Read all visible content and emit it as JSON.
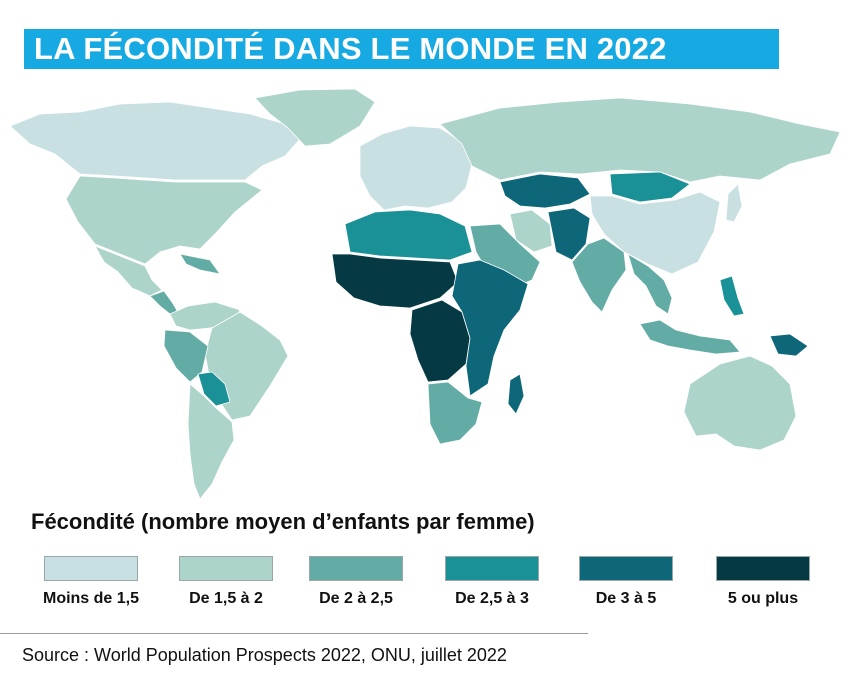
{
  "title": "LA FÉCONDITÉ DANS LE MONDE EN 2022",
  "legend": {
    "title": "Fécondité (nombre moyen d’enfants par femme)",
    "items": [
      {
        "label": "Moins de 1,5",
        "color": "#c9e0e3"
      },
      {
        "label": "De 1,5 à 2",
        "color": "#acd4cb"
      },
      {
        "label": "De 2 à 2,5",
        "color": "#63aca5"
      },
      {
        "label": "De 2,5 à 3",
        "color": "#1a9097"
      },
      {
        "label": "De 3 à 5",
        "color": "#0e6679"
      },
      {
        "label": "5 ou plus",
        "color": "#053a45"
      }
    ]
  },
  "regions": [
    {
      "name": "canada",
      "class": 0
    },
    {
      "name": "greenland",
      "class": 1
    },
    {
      "name": "usa",
      "class": 1
    },
    {
      "name": "mexico",
      "class": 1
    },
    {
      "name": "central-america",
      "class": 2
    },
    {
      "name": "colombia-venezuela",
      "class": 1
    },
    {
      "name": "brazil",
      "class": 1
    },
    {
      "name": "peru",
      "class": 2
    },
    {
      "name": "bolivia",
      "class": 3
    },
    {
      "name": "argentina-chile",
      "class": 1
    },
    {
      "name": "europe",
      "class": 0
    },
    {
      "name": "russia",
      "class": 1
    },
    {
      "name": "china",
      "class": 0
    },
    {
      "name": "mongolia",
      "class": 3
    },
    {
      "name": "central-asia",
      "class": 4
    },
    {
      "name": "iran",
      "class": 1
    },
    {
      "name": "afghanistan-pakistan",
      "class": 4
    },
    {
      "name": "india",
      "class": 2
    },
    {
      "name": "southeast-asia",
      "class": 2
    },
    {
      "name": "arabia",
      "class": 2
    },
    {
      "name": "north-africa",
      "class": 3
    },
    {
      "name": "sahel",
      "class": 5
    },
    {
      "name": "central-africa",
      "class": 5
    },
    {
      "name": "east-africa",
      "class": 4
    },
    {
      "name": "southern-africa",
      "class": 2
    },
    {
      "name": "madagascar",
      "class": 4
    },
    {
      "name": "indonesia",
      "class": 2
    },
    {
      "name": "philippines",
      "class": 3
    },
    {
      "name": "papua-new-guinea",
      "class": 4
    },
    {
      "name": "australia",
      "class": 1
    },
    {
      "name": "japan",
      "class": 0
    }
  ],
  "source": "Source : World Population Prospects 2022, ONU, juillet 2022"
}
